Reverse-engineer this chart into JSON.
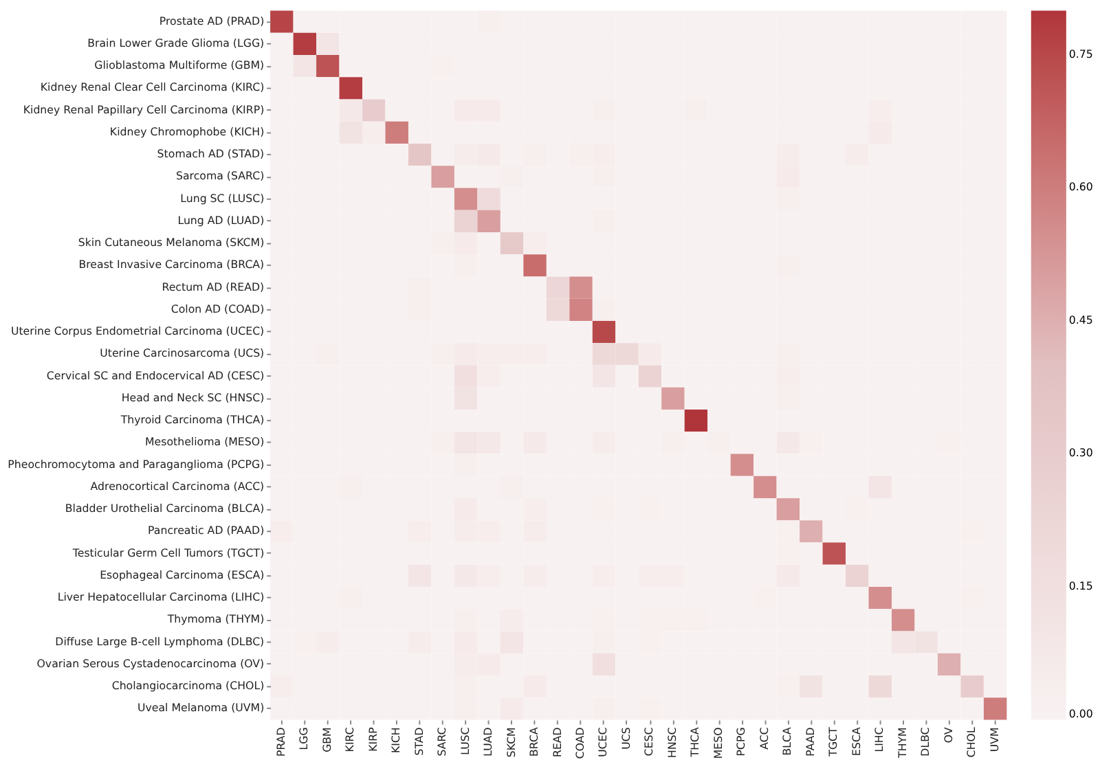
{
  "chart_data": {
    "type": "heatmap",
    "categories": [
      "PRAD",
      "LGG",
      "GBM",
      "KIRC",
      "KIRP",
      "KICH",
      "STAD",
      "SARC",
      "LUSC",
      "LUAD",
      "SKCM",
      "BRCA",
      "READ",
      "COAD",
      "UCEC",
      "UCS",
      "CESC",
      "HNSC",
      "THCA",
      "MESO",
      "PCPG",
      "ACC",
      "BLCA",
      "PAAD",
      "TGCT",
      "ESCA",
      "LIHC",
      "THYM",
      "DLBC",
      "OV",
      "CHOL",
      "UVM"
    ],
    "y_categories": [
      "Prostate AD (PRAD)",
      "Brain Lower Grade Glioma (LGG)",
      "Glioblastoma Multiforme (GBM)",
      "Kidney Renal Clear Cell Carcinoma (KIRC)",
      "Kidney Renal Papillary Cell Carcinoma (KIRP)",
      "Kidney Chromophobe (KICH)",
      "Stomach AD (STAD)",
      "Sarcoma (SARC)",
      "Lung SC (LUSC)",
      "Lung AD (LUAD)",
      "Skin Cutaneous Melanoma (SKCM)",
      "Breast Invasive Carcinoma (BRCA)",
      "Rectum AD (READ)",
      "Colon AD (COAD)",
      "Uterine Corpus Endometrial Carcinoma (UCEC)",
      "Uterine Carcinosarcoma (UCS)",
      "Cervical SC and Endocervical AD (CESC)",
      "Head and Neck SC (HNSC)",
      "Thyroid Carcinoma (THCA)",
      "Mesothelioma (MESO)",
      "Pheochromocytoma and Paraganglioma (PCPG)",
      "Adrenocortical Carcinoma (ACC)",
      "Bladder Urothelial Carcinoma (BLCA)",
      "Pancreatic AD (PAAD)",
      "Testicular Germ Cell Tumors (TGCT)",
      "Esophageal Carcinoma (ESCA)",
      "Liver Hepatocellular Carcinoma (LIHC)",
      "Thymoma (THYM)",
      "Diffuse Large B-cell Lymphoma (DLBC)",
      "Ovarian Serous Cystadenocarcinoma (OV)",
      "Cholangiocarcinoma (CHOL)",
      "Uveal Melanoma (UVM)"
    ],
    "cells": [
      [
        0.76,
        0.01,
        0.01,
        0.01,
        0.01,
        0.01,
        0.01,
        0.01,
        0.01,
        0.03,
        0.01,
        0.01,
        0.01,
        0.01,
        0.01,
        0.01,
        0.01,
        0.01,
        0.01,
        0.01,
        0.01,
        0.01,
        0.01,
        0.01,
        0.01,
        0.01,
        0.01,
        0.01,
        0.01,
        0.01,
        0.01,
        0.01
      ],
      [
        0.01,
        0.78,
        0.1,
        0.01,
        0.01,
        0.01,
        0.01,
        0.01,
        0.01,
        0.01,
        0.01,
        0.01,
        0.01,
        0.01,
        0.01,
        0.01,
        0.01,
        0.01,
        0.01,
        0.01,
        0.01,
        0.01,
        0.01,
        0.01,
        0.01,
        0.01,
        0.01,
        0.01,
        0.01,
        0.01,
        0.01,
        0.01
      ],
      [
        0.01,
        0.1,
        0.72,
        0.01,
        0.01,
        0.01,
        0.01,
        0.02,
        0.01,
        0.01,
        0.01,
        0.01,
        0.01,
        0.01,
        0.01,
        0.01,
        0.01,
        0.01,
        0.01,
        0.01,
        0.01,
        0.01,
        0.01,
        0.01,
        0.01,
        0.01,
        0.01,
        0.01,
        0.01,
        0.01,
        0.01,
        0.01
      ],
      [
        0.01,
        0.01,
        0.01,
        0.78,
        0.01,
        0.01,
        0.01,
        0.01,
        0.01,
        0.01,
        0.01,
        0.01,
        0.01,
        0.01,
        0.01,
        0.01,
        0.01,
        0.01,
        0.01,
        0.01,
        0.01,
        0.01,
        0.01,
        0.01,
        0.01,
        0.01,
        0.01,
        0.01,
        0.01,
        0.01,
        0.01,
        0.01
      ],
      [
        0.01,
        0.01,
        0.01,
        0.08,
        0.3,
        0.01,
        0.01,
        0.01,
        0.06,
        0.06,
        0.01,
        0.01,
        0.01,
        0.01,
        0.03,
        0.01,
        0.01,
        0.01,
        0.03,
        0.01,
        0.01,
        0.01,
        0.01,
        0.01,
        0.01,
        0.01,
        0.04,
        0.01,
        0.01,
        0.01,
        0.01,
        0.01
      ],
      [
        0.01,
        0.01,
        0.01,
        0.12,
        0.04,
        0.6,
        0.01,
        0.01,
        0.01,
        0.01,
        0.01,
        0.01,
        0.01,
        0.01,
        0.01,
        0.01,
        0.01,
        0.01,
        0.01,
        0.01,
        0.01,
        0.01,
        0.01,
        0.01,
        0.01,
        0.01,
        0.06,
        0.01,
        0.01,
        0.01,
        0.01,
        0.01
      ],
      [
        0.01,
        0.01,
        0.01,
        0.01,
        0.01,
        0.01,
        0.35,
        0.01,
        0.05,
        0.07,
        0.01,
        0.03,
        0.01,
        0.03,
        0.04,
        0.01,
        0.01,
        0.01,
        0.01,
        0.01,
        0.01,
        0.01,
        0.05,
        0.01,
        0.01,
        0.05,
        0.01,
        0.01,
        0.01,
        0.01,
        0.01,
        0.01
      ],
      [
        0.01,
        0.01,
        0.01,
        0.01,
        0.01,
        0.01,
        0.01,
        0.5,
        0.01,
        0.01,
        0.03,
        0.01,
        0.01,
        0.01,
        0.03,
        0.01,
        0.01,
        0.01,
        0.01,
        0.01,
        0.01,
        0.01,
        0.06,
        0.01,
        0.01,
        0.01,
        0.01,
        0.01,
        0.01,
        0.01,
        0.01,
        0.01
      ],
      [
        0.01,
        0.01,
        0.01,
        0.01,
        0.01,
        0.01,
        0.01,
        0.01,
        0.55,
        0.18,
        0.01,
        0.01,
        0.01,
        0.01,
        0.01,
        0.01,
        0.01,
        0.01,
        0.01,
        0.01,
        0.01,
        0.01,
        0.03,
        0.01,
        0.01,
        0.01,
        0.01,
        0.01,
        0.01,
        0.01,
        0.01,
        0.01
      ],
      [
        0.01,
        0.01,
        0.01,
        0.01,
        0.01,
        0.01,
        0.01,
        0.01,
        0.25,
        0.5,
        0.01,
        0.01,
        0.01,
        0.01,
        0.03,
        0.01,
        0.01,
        0.01,
        0.01,
        0.01,
        0.01,
        0.01,
        0.01,
        0.01,
        0.01,
        0.01,
        0.01,
        0.01,
        0.01,
        0.01,
        0.01,
        0.01
      ],
      [
        0.01,
        0.01,
        0.01,
        0.01,
        0.01,
        0.01,
        0.01,
        0.03,
        0.06,
        0.01,
        0.33,
        0.04,
        0.01,
        0.01,
        0.01,
        0.01,
        0.01,
        0.01,
        0.01,
        0.01,
        0.01,
        0.01,
        0.01,
        0.01,
        0.01,
        0.01,
        0.01,
        0.01,
        0.01,
        0.01,
        0.01,
        0.01
      ],
      [
        0.01,
        0.01,
        0.01,
        0.01,
        0.01,
        0.01,
        0.01,
        0.01,
        0.03,
        0.01,
        0.01,
        0.65,
        0.01,
        0.01,
        0.01,
        0.01,
        0.01,
        0.01,
        0.01,
        0.01,
        0.01,
        0.01,
        0.03,
        0.01,
        0.01,
        0.01,
        0.01,
        0.01,
        0.01,
        0.01,
        0.01,
        0.01
      ],
      [
        0.01,
        0.01,
        0.01,
        0.01,
        0.01,
        0.01,
        0.03,
        0.01,
        0.01,
        0.01,
        0.01,
        0.01,
        0.22,
        0.55,
        0.01,
        0.01,
        0.01,
        0.01,
        0.01,
        0.01,
        0.01,
        0.01,
        0.01,
        0.01,
        0.01,
        0.01,
        0.01,
        0.01,
        0.01,
        0.01,
        0.01,
        0.01
      ],
      [
        0.01,
        0.01,
        0.01,
        0.01,
        0.01,
        0.01,
        0.03,
        0.01,
        0.01,
        0.01,
        0.01,
        0.01,
        0.2,
        0.58,
        0.03,
        0.01,
        0.01,
        0.01,
        0.01,
        0.01,
        0.01,
        0.01,
        0.01,
        0.01,
        0.01,
        0.01,
        0.01,
        0.01,
        0.01,
        0.01,
        0.01,
        0.01
      ],
      [
        0.01,
        0.01,
        0.01,
        0.01,
        0.01,
        0.01,
        0.01,
        0.01,
        0.01,
        0.01,
        0.01,
        0.01,
        0.01,
        0.01,
        0.75,
        0.01,
        0.01,
        0.01,
        0.01,
        0.01,
        0.01,
        0.01,
        0.01,
        0.01,
        0.01,
        0.01,
        0.01,
        0.01,
        0.01,
        0.01,
        0.01,
        0.01
      ],
      [
        0.01,
        0.01,
        0.03,
        0.01,
        0.01,
        0.01,
        0.01,
        0.03,
        0.06,
        0.04,
        0.04,
        0.04,
        0.01,
        0.01,
        0.2,
        0.2,
        0.06,
        0.01,
        0.01,
        0.01,
        0.01,
        0.01,
        0.03,
        0.01,
        0.01,
        0.01,
        0.01,
        0.01,
        0.01,
        0.01,
        0.01,
        0.01
      ],
      [
        0.01,
        0.01,
        0.01,
        0.01,
        0.01,
        0.01,
        0.01,
        0.01,
        0.15,
        0.04,
        0.01,
        0.01,
        0.01,
        0.01,
        0.1,
        0.01,
        0.25,
        0.01,
        0.01,
        0.01,
        0.01,
        0.01,
        0.04,
        0.01,
        0.01,
        0.01,
        0.01,
        0.01,
        0.01,
        0.01,
        0.01,
        0.01
      ],
      [
        0.01,
        0.01,
        0.01,
        0.01,
        0.01,
        0.01,
        0.01,
        0.01,
        0.12,
        0.01,
        0.01,
        0.01,
        0.01,
        0.01,
        0.01,
        0.01,
        0.01,
        0.5,
        0.01,
        0.01,
        0.01,
        0.01,
        0.03,
        0.01,
        0.01,
        0.01,
        0.01,
        0.01,
        0.01,
        0.01,
        0.01,
        0.01
      ],
      [
        0.01,
        0.01,
        0.01,
        0.01,
        0.01,
        0.01,
        0.01,
        0.01,
        0.01,
        0.01,
        0.01,
        0.01,
        0.01,
        0.01,
        0.01,
        0.01,
        0.01,
        0.01,
        0.8,
        0.01,
        0.01,
        0.01,
        0.01,
        0.01,
        0.01,
        0.01,
        0.01,
        0.01,
        0.01,
        0.01,
        0.01,
        0.01
      ],
      [
        0.01,
        0.01,
        0.01,
        0.01,
        0.01,
        0.01,
        0.01,
        0.03,
        0.1,
        0.08,
        0.01,
        0.07,
        0.01,
        0.01,
        0.05,
        0.01,
        0.01,
        0.03,
        0.01,
        0.03,
        0.01,
        0.01,
        0.08,
        0.02,
        0.01,
        0.01,
        0.01,
        0.01,
        0.01,
        0.02,
        0.01,
        0.01
      ],
      [
        0.01,
        0.01,
        0.01,
        0.01,
        0.01,
        0.01,
        0.01,
        0.01,
        0.03,
        0.01,
        0.01,
        0.01,
        0.01,
        0.01,
        0.01,
        0.01,
        0.01,
        0.01,
        0.01,
        0.01,
        0.55,
        0.01,
        0.01,
        0.01,
        0.01,
        0.01,
        0.01,
        0.01,
        0.01,
        0.01,
        0.01,
        0.01
      ],
      [
        0.01,
        0.01,
        0.01,
        0.03,
        0.01,
        0.01,
        0.01,
        0.01,
        0.01,
        0.01,
        0.03,
        0.01,
        0.01,
        0.01,
        0.01,
        0.01,
        0.01,
        0.01,
        0.01,
        0.01,
        0.01,
        0.55,
        0.01,
        0.01,
        0.01,
        0.01,
        0.1,
        0.01,
        0.01,
        0.01,
        0.01,
        0.01
      ],
      [
        0.01,
        0.01,
        0.01,
        0.01,
        0.01,
        0.01,
        0.01,
        0.01,
        0.06,
        0.01,
        0.01,
        0.04,
        0.01,
        0.01,
        0.02,
        0.01,
        0.02,
        0.01,
        0.01,
        0.01,
        0.01,
        0.01,
        0.5,
        0.01,
        0.01,
        0.02,
        0.01,
        0.01,
        0.01,
        0.01,
        0.01,
        0.01
      ],
      [
        0.04,
        0.01,
        0.01,
        0.01,
        0.01,
        0.01,
        0.04,
        0.01,
        0.05,
        0.04,
        0.01,
        0.05,
        0.01,
        0.01,
        0.01,
        0.01,
        0.01,
        0.01,
        0.01,
        0.01,
        0.01,
        0.01,
        0.02,
        0.45,
        0.01,
        0.01,
        0.01,
        0.01,
        0.01,
        0.01,
        0.02,
        0.01
      ],
      [
        0.01,
        0.01,
        0.01,
        0.01,
        0.01,
        0.01,
        0.01,
        0.01,
        0.01,
        0.01,
        0.01,
        0.01,
        0.01,
        0.01,
        0.01,
        0.01,
        0.01,
        0.01,
        0.01,
        0.01,
        0.01,
        0.01,
        0.02,
        0.01,
        0.72,
        0.01,
        0.01,
        0.01,
        0.01,
        0.01,
        0.01,
        0.01
      ],
      [
        0.01,
        0.01,
        0.01,
        0.01,
        0.01,
        0.01,
        0.1,
        0.01,
        0.08,
        0.04,
        0.01,
        0.05,
        0.01,
        0.01,
        0.04,
        0.01,
        0.04,
        0.04,
        0.01,
        0.01,
        0.01,
        0.01,
        0.07,
        0.01,
        0.01,
        0.25,
        0.01,
        0.01,
        0.01,
        0.01,
        0.01,
        0.01
      ],
      [
        0.01,
        0.01,
        0.01,
        0.03,
        0.01,
        0.01,
        0.01,
        0.01,
        0.01,
        0.01,
        0.01,
        0.01,
        0.01,
        0.01,
        0.01,
        0.01,
        0.01,
        0.01,
        0.01,
        0.01,
        0.01,
        0.02,
        0.01,
        0.01,
        0.01,
        0.01,
        0.55,
        0.01,
        0.01,
        0.01,
        0.02,
        0.01
      ],
      [
        0.01,
        0.01,
        0.01,
        0.01,
        0.01,
        0.01,
        0.01,
        0.01,
        0.03,
        0.01,
        0.05,
        0.01,
        0.01,
        0.01,
        0.02,
        0.01,
        0.02,
        0.02,
        0.02,
        0.01,
        0.01,
        0.01,
        0.01,
        0.01,
        0.01,
        0.01,
        0.01,
        0.55,
        0.01,
        0.01,
        0.01,
        0.01
      ],
      [
        0.01,
        0.02,
        0.05,
        0.01,
        0.01,
        0.01,
        0.05,
        0.01,
        0.06,
        0.01,
        0.1,
        0.01,
        0.01,
        0.01,
        0.03,
        0.01,
        0.02,
        0.01,
        0.01,
        0.01,
        0.01,
        0.01,
        0.01,
        0.01,
        0.01,
        0.01,
        0.01,
        0.1,
        0.12,
        0.01,
        0.01,
        0.01
      ],
      [
        0.01,
        0.01,
        0.01,
        0.01,
        0.01,
        0.01,
        0.01,
        0.01,
        0.05,
        0.06,
        0.01,
        0.01,
        0.01,
        0.01,
        0.15,
        0.01,
        0.01,
        0.01,
        0.01,
        0.01,
        0.01,
        0.01,
        0.01,
        0.01,
        0.01,
        0.01,
        0.01,
        0.01,
        0.01,
        0.45,
        0.01,
        0.01
      ],
      [
        0.04,
        0.01,
        0.01,
        0.01,
        0.01,
        0.01,
        0.01,
        0.01,
        0.03,
        0.01,
        0.01,
        0.06,
        0.01,
        0.01,
        0.01,
        0.01,
        0.01,
        0.01,
        0.01,
        0.01,
        0.01,
        0.01,
        0.02,
        0.12,
        0.01,
        0.01,
        0.2,
        0.01,
        0.01,
        0.01,
        0.3,
        0.01
      ],
      [
        0.01,
        0.01,
        0.01,
        0.01,
        0.01,
        0.01,
        0.01,
        0.01,
        0.03,
        0.01,
        0.06,
        0.01,
        0.01,
        0.01,
        0.03,
        0.01,
        0.02,
        0.01,
        0.01,
        0.01,
        0.01,
        0.01,
        0.01,
        0.01,
        0.01,
        0.01,
        0.01,
        0.01,
        0.01,
        0.01,
        0.01,
        0.6
      ]
    ],
    "clim": [
      0,
      0.8
    ],
    "cticks": [
      {
        "value": 0,
        "label": "0.00"
      },
      {
        "value": 0.15,
        "label": "0.15"
      },
      {
        "value": 0.3,
        "label": "0.30"
      },
      {
        "value": 0.45,
        "label": "0.45"
      },
      {
        "value": 0.6,
        "label": "0.60"
      },
      {
        "value": 0.75,
        "label": "0.75"
      }
    ]
  }
}
